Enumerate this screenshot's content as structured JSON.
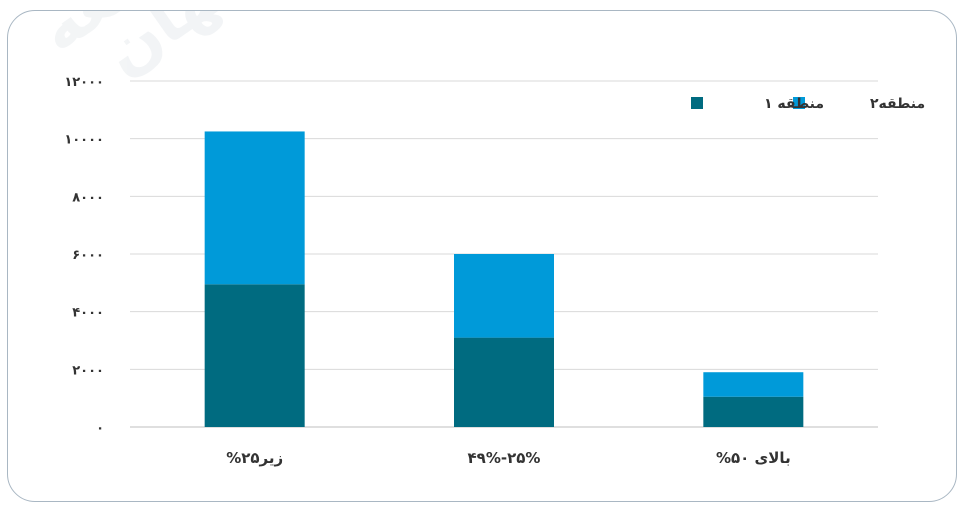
{
  "watermark": {
    "line1": "قلعه",
    "line2": "صفهان"
  },
  "chart_data": {
    "type": "bar",
    "stacked": true,
    "categories": [
      "زیر۲۵%",
      "۲۵%-۴۹%",
      "بالای ۵۰%"
    ],
    "series": [
      {
        "name": "منطقه ۱",
        "values": [
          4950,
          3100,
          1050
        ],
        "color": "#006b80"
      },
      {
        "name": "منطقه۲",
        "values": [
          5300,
          2900,
          850
        ],
        "color": "#009ad9"
      }
    ],
    "ylim": [
      0,
      12000
    ],
    "yticks": [
      0,
      2000,
      4000,
      6000,
      8000,
      10000,
      12000
    ],
    "ytick_labels": [
      "۰",
      "۲۰۰۰",
      "۴۰۰۰",
      "۶۰۰۰",
      "۸۰۰۰",
      "۱۰۰۰۰",
      "۱۲۰۰۰"
    ],
    "grid": true,
    "legend_position": "top-right",
    "title": "",
    "xlabel": "",
    "ylabel": ""
  }
}
